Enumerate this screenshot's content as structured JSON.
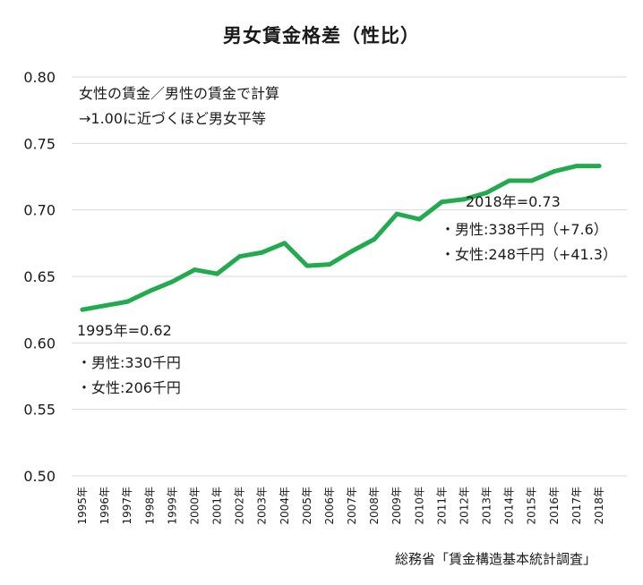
{
  "title": "男女賃金格差（性比）",
  "note": {
    "line1": "女性の賃金／男性の賃金で計算",
    "line2": "→1.00に近づくほど男女平等"
  },
  "annotations": {
    "start": {
      "label": "1995年=0.62",
      "male": "・男性:330千円",
      "female": "・女性:206千円"
    },
    "end": {
      "label": "2018年=0.73",
      "male": "・男性:338千円（+7.6）",
      "female": "・女性:248千円（+41.3）"
    }
  },
  "source": "総務省「賃金構造基本統計調査」",
  "colors": {
    "line": "#22aa4f",
    "grid": "#d9d9d9",
    "text": "#1a1a1a"
  },
  "chart_data": {
    "type": "line",
    "title": "男女賃金格差（性比）",
    "xlabel": "",
    "ylabel": "",
    "ylim": [
      0.5,
      0.8
    ],
    "yticks": [
      "0.50",
      "0.55",
      "0.60",
      "0.65",
      "0.70",
      "0.75",
      "0.80"
    ],
    "grid": true,
    "legend": "none",
    "categories": [
      "1995年",
      "1996年",
      "1997年",
      "1998年",
      "1999年",
      "2000年",
      "2001年",
      "2002年",
      "2003年",
      "2004年",
      "2005年",
      "2006年",
      "2007年",
      "2008年",
      "2009年",
      "2010年",
      "2011年",
      "2012年",
      "2013年",
      "2014年",
      "2015年",
      "2016年",
      "2017年",
      "2018年"
    ],
    "series": [
      {
        "values": [
          0.625,
          0.628,
          0.631,
          0.639,
          0.646,
          0.655,
          0.652,
          0.665,
          0.668,
          0.675,
          0.658,
          0.659,
          0.669,
          0.678,
          0.697,
          0.693,
          0.706,
          0.708,
          0.713,
          0.722,
          0.722,
          0.729,
          0.733,
          0.733
        ]
      }
    ]
  }
}
